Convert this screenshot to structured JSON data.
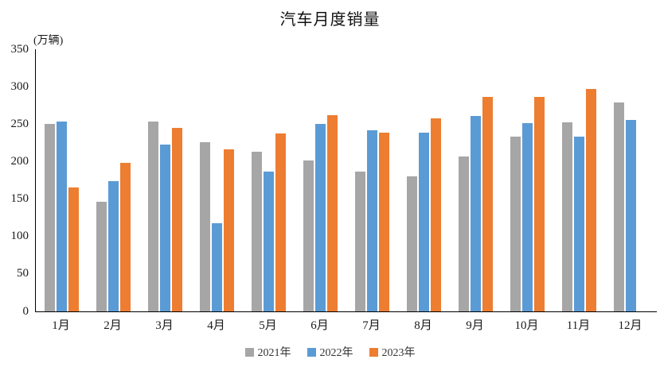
{
  "title": "汽车月度销量",
  "unit_label": "(万辆)",
  "chart_data": {
    "type": "bar",
    "title": "汽车月度销量",
    "xlabel": "",
    "ylabel": "(万辆)",
    "categories": [
      "1月",
      "2月",
      "3月",
      "4月",
      "5月",
      "6月",
      "7月",
      "8月",
      "9月",
      "10月",
      "11月",
      "12月"
    ],
    "series": [
      {
        "name": "2021年",
        "color": "#A6A6A6",
        "values": [
          250,
          146,
          253,
          226,
          213,
          202,
          187,
          180,
          207,
          233,
          252,
          279
        ]
      },
      {
        "name": "2022年",
        "color": "#5B9BD5",
        "values": [
          253,
          174,
          223,
          118,
          187,
          250,
          242,
          239,
          261,
          251,
          233,
          256
        ]
      },
      {
        "name": "2023年",
        "color": "#ED7D31",
        "values": [
          165,
          198,
          245,
          216,
          238,
          262,
          239,
          258,
          286,
          286,
          297,
          null
        ]
      }
    ],
    "ylim": [
      0,
      350
    ],
    "yticks": [
      0,
      50,
      100,
      150,
      200,
      250,
      300,
      350
    ],
    "grid": false,
    "legend_position": "bottom",
    "axis_color": "#000000"
  }
}
